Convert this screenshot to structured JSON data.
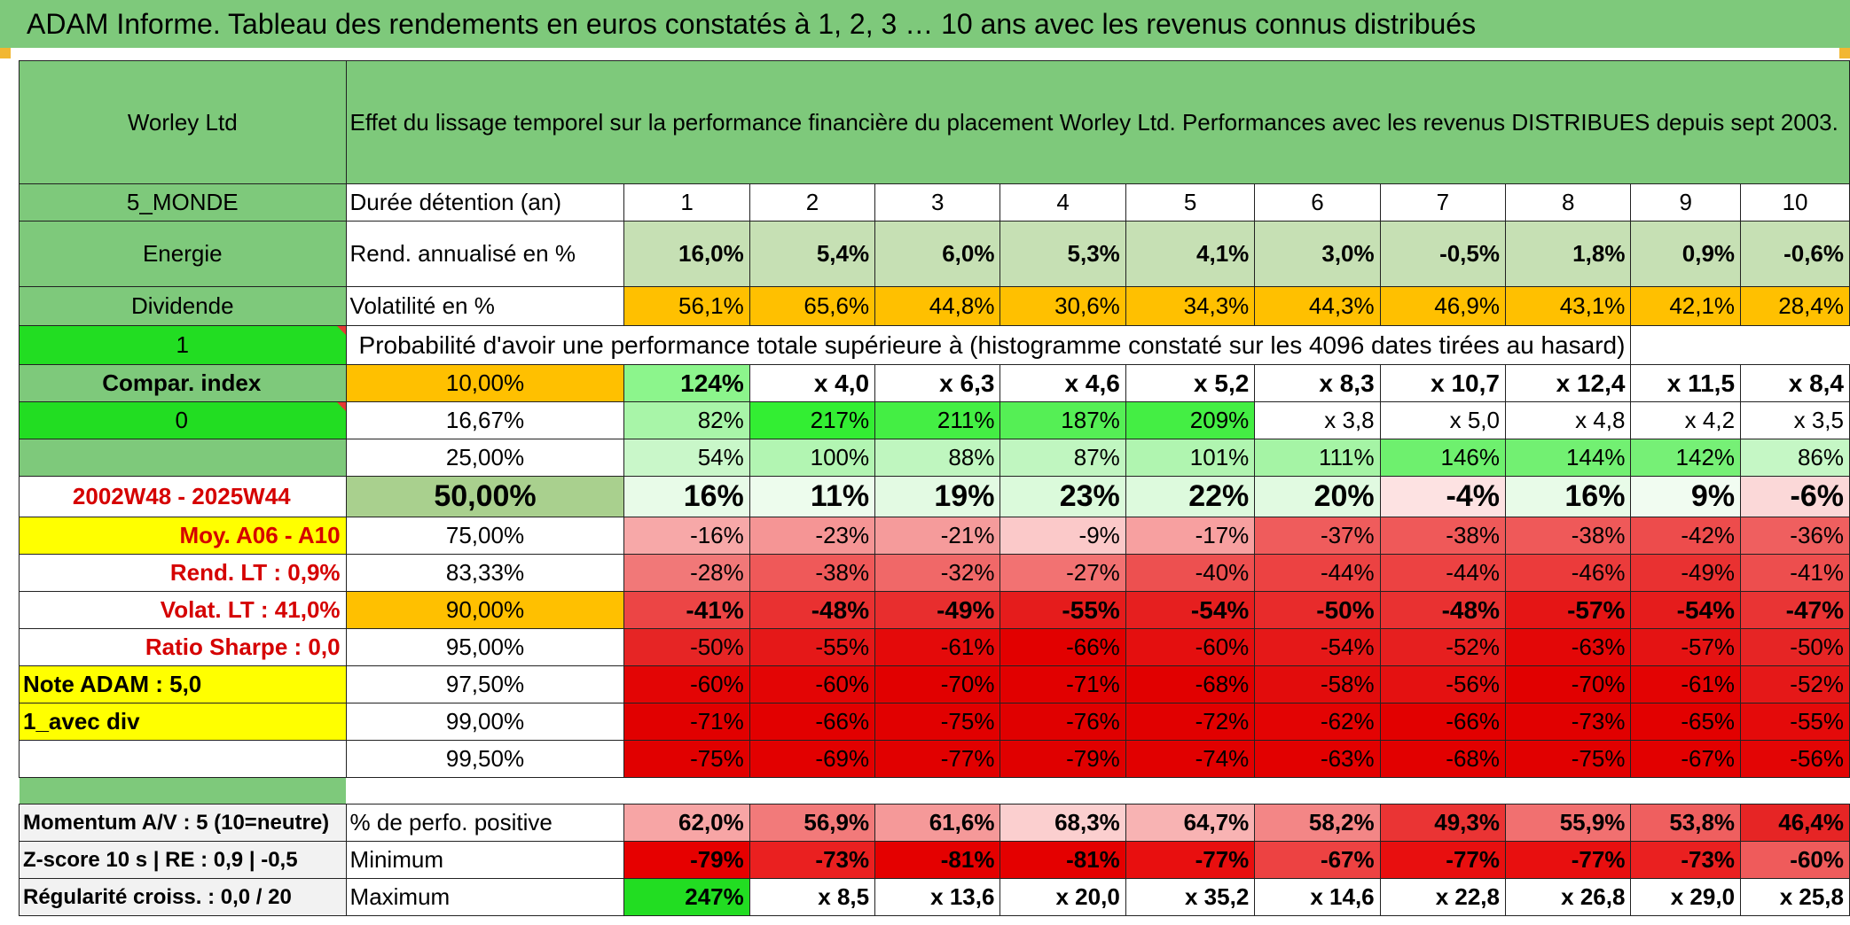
{
  "title": "ADAM Informe. Tableau des rendements en euros constatés à 1, 2, 3 … 10 ans avec les revenus connus distribués",
  "header": {
    "name": "Worley Ltd",
    "description": "Effet du lissage temporel sur la performance financière du placement Worley Ltd. Performances avec les revenus DISTRIBUES depuis sept 2003."
  },
  "side": {
    "region": "5_MONDE",
    "sector": "Energie",
    "type": "Dividende",
    "value1": "1",
    "compar": "Compar. index",
    "value0": "0",
    "period": "2002W48 - 2025W44",
    "moy": "Moy. A06 - A10",
    "rend_lt": "Rend. LT :   0,9%",
    "volat_lt": "Volat. LT :   41,0%",
    "sharpe": "Ratio Sharpe :    0,0",
    "note": "Note ADAM : 5,0",
    "avec_div": "1_avec div",
    "momentum": "Momentum A/V : 5 (10=neutre)",
    "zscore": "Z-score 10 s | RE : 0,9 | -0,5",
    "regularite": "Régularité croiss. : 0,0 / 20"
  },
  "labels": {
    "duree": "Durée détention (an)",
    "rend": "Rend. annualisé en %",
    "vol": "Volatilité en %",
    "proba": "Probabilité d'avoir une performance totale supérieure à (histogramme constaté sur les 4096 dates tirées au hasard)",
    "perf_pos": "% de perfo. positive",
    "minimum": "Minimum",
    "maximum": "Maximum"
  },
  "years": [
    "1",
    "2",
    "3",
    "4",
    "5",
    "6",
    "7",
    "8",
    "9",
    "10"
  ],
  "rend": [
    "16,0%",
    "5,4%",
    "6,0%",
    "5,3%",
    "4,1%",
    "3,0%",
    "-0,5%",
    "1,8%",
    "0,9%",
    "-0,6%"
  ],
  "vol": [
    "56,1%",
    "65,6%",
    "44,8%",
    "30,6%",
    "34,3%",
    "44,3%",
    "46,9%",
    "43,1%",
    "42,1%",
    "28,4%"
  ],
  "prob_rows": [
    {
      "label": "10,00%",
      "cells": [
        "124%",
        "x 4,0",
        "x 6,3",
        "x 4,6",
        "x 5,2",
        "x 8,3",
        "x 10,7",
        "x 12,4",
        "x 11,5",
        "x 8,4"
      ]
    },
    {
      "label": "16,67%",
      "cells": [
        "82%",
        "217%",
        "211%",
        "187%",
        "209%",
        "x 3,8",
        "x 5,0",
        "x 4,8",
        "x 4,2",
        "x 3,5"
      ]
    },
    {
      "label": "25,00%",
      "cells": [
        "54%",
        "100%",
        "88%",
        "87%",
        "101%",
        "111%",
        "146%",
        "144%",
        "142%",
        "86%"
      ]
    },
    {
      "label": "50,00%",
      "cells": [
        "16%",
        "11%",
        "19%",
        "23%",
        "22%",
        "20%",
        "-4%",
        "16%",
        "9%",
        "-6%"
      ]
    },
    {
      "label": "75,00%",
      "cells": [
        "-16%",
        "-23%",
        "-21%",
        "-9%",
        "-17%",
        "-37%",
        "-38%",
        "-38%",
        "-42%",
        "-36%"
      ]
    },
    {
      "label": "83,33%",
      "cells": [
        "-28%",
        "-38%",
        "-32%",
        "-27%",
        "-40%",
        "-44%",
        "-44%",
        "-46%",
        "-49%",
        "-41%"
      ]
    },
    {
      "label": "90,00%",
      "cells": [
        "-41%",
        "-48%",
        "-49%",
        "-55%",
        "-54%",
        "-50%",
        "-48%",
        "-57%",
        "-54%",
        "-47%"
      ]
    },
    {
      "label": "95,00%",
      "cells": [
        "-50%",
        "-55%",
        "-61%",
        "-66%",
        "-60%",
        "-54%",
        "-52%",
        "-63%",
        "-57%",
        "-50%"
      ]
    },
    {
      "label": "97,50%",
      "cells": [
        "-60%",
        "-60%",
        "-70%",
        "-71%",
        "-68%",
        "-58%",
        "-56%",
        "-70%",
        "-61%",
        "-52%"
      ]
    },
    {
      "label": "99,00%",
      "cells": [
        "-71%",
        "-66%",
        "-75%",
        "-76%",
        "-72%",
        "-62%",
        "-66%",
        "-73%",
        "-65%",
        "-55%"
      ]
    },
    {
      "label": "99,50%",
      "cells": [
        "-75%",
        "-69%",
        "-77%",
        "-79%",
        "-74%",
        "-63%",
        "-68%",
        "-75%",
        "-67%",
        "-56%"
      ]
    }
  ],
  "perf_pos": [
    "62,0%",
    "56,9%",
    "61,6%",
    "68,3%",
    "64,7%",
    "58,2%",
    "49,3%",
    "55,9%",
    "53,8%",
    "46,4%"
  ],
  "minimum": [
    "-79%",
    "-73%",
    "-81%",
    "-81%",
    "-77%",
    "-67%",
    "-77%",
    "-77%",
    "-73%",
    "-60%"
  ],
  "maximum": [
    "247%",
    "x 8,5",
    "x 13,6",
    "x 20,0",
    "x 35,2",
    "x 14,6",
    "x 22,8",
    "x 26,8",
    "x 29,0",
    "x 25,8"
  ],
  "colors": {
    "rend": [
      "#c6e0b4",
      "#c6e0b4",
      "#c6e0b4",
      "#c6e0b4",
      "#c6e0b4",
      "#c6e0b4",
      "#c6e0b4",
      "#c6e0b4",
      "#c6e0b4",
      "#c6e0b4"
    ],
    "vol": [
      "#ffc000",
      "#ffc000",
      "#ffc000",
      "#ffc000",
      "#ffc000",
      "#ffc000",
      "#ffc000",
      "#ffc000",
      "#ffc000",
      "#ffc000"
    ],
    "prob_rows": [
      [
        "#8cf58c",
        "#ffffff",
        "#ffffff",
        "#ffffff",
        "#ffffff",
        "#ffffff",
        "#ffffff",
        "#ffffff",
        "#ffffff",
        "#ffffff"
      ],
      [
        "#a8f5a8",
        "#33ee33",
        "#44ee44",
        "#55ef55",
        "#44ee44",
        "#ffffff",
        "#ffffff",
        "#ffffff",
        "#ffffff",
        "#ffffff"
      ],
      [
        "#c9f7c9",
        "#b2f5b2",
        "#bff6bf",
        "#c0f6c0",
        "#b0f5b0",
        "#a5f4a5",
        "#6ef06e",
        "#72f072",
        "#76f076",
        "#c5f7c5"
      ],
      [
        "#e8fbe8",
        "#edfced",
        "#e3fae3",
        "#dbfadb",
        "#ddfadd",
        "#e1fae1",
        "#fde2e2",
        "#e8fbe8",
        "#f1fcf1",
        "#fbd8d8"
      ],
      [
        "#f7a8a8",
        "#f59595",
        "#f59b9b",
        "#fbc9c9",
        "#f7a0a0",
        "#ef5c5c",
        "#ef5959",
        "#ef5959",
        "#ed4c4c",
        "#ef5f5f"
      ],
      [
        "#f17878",
        "#ef5959",
        "#f06868",
        "#f27272",
        "#ed5050",
        "#ec4242",
        "#ec4242",
        "#eb3b3b",
        "#e93131",
        "#ed4e4e"
      ],
      [
        "#ec4545",
        "#e93131",
        "#e82e2e",
        "#e51c1c",
        "#e61f1f",
        "#e82b2b",
        "#e93131",
        "#e51515",
        "#e51c1c",
        "#e93434"
      ],
      [
        "#e62525",
        "#e51818",
        "#e40a0a",
        "#e20000",
        "#e40f0f",
        "#e51818",
        "#e61f1f",
        "#e30707",
        "#e41313",
        "#e62525"
      ],
      [
        "#e30505",
        "#e30505",
        "#e10000",
        "#e10000",
        "#e10000",
        "#e20c0c",
        "#e41111",
        "#e10000",
        "#e30303",
        "#e51818"
      ],
      [
        "#e10000",
        "#e20000",
        "#e10000",
        "#e00000",
        "#e10000",
        "#e30303",
        "#e20000",
        "#e10000",
        "#e20000",
        "#e40a0a"
      ],
      [
        "#e10000",
        "#e20000",
        "#e10000",
        "#e00000",
        "#e10000",
        "#e20000",
        "#e20000",
        "#e10000",
        "#e20000",
        "#e30505"
      ]
    ],
    "perf_pos": [
      "#f7a5a5",
      "#f27a7a",
      "#f59999",
      "#fbcfcf",
      "#f8b3b3",
      "#f38686",
      "#ea3434",
      "#f17070",
      "#ef5f5f",
      "#e62525"
    ],
    "minimum": [
      "#e60000",
      "#ea2020",
      "#e40000",
      "#e40000",
      "#e80f0f",
      "#ed4242",
      "#e80f0f",
      "#e80f0f",
      "#ea2020",
      "#ef5b5b"
    ],
    "maximum": [
      "#22dd22",
      "#ffffff",
      "#ffffff",
      "#ffffff",
      "#ffffff",
      "#ffffff",
      "#ffffff",
      "#ffffff",
      "#ffffff",
      "#ffffff"
    ]
  }
}
